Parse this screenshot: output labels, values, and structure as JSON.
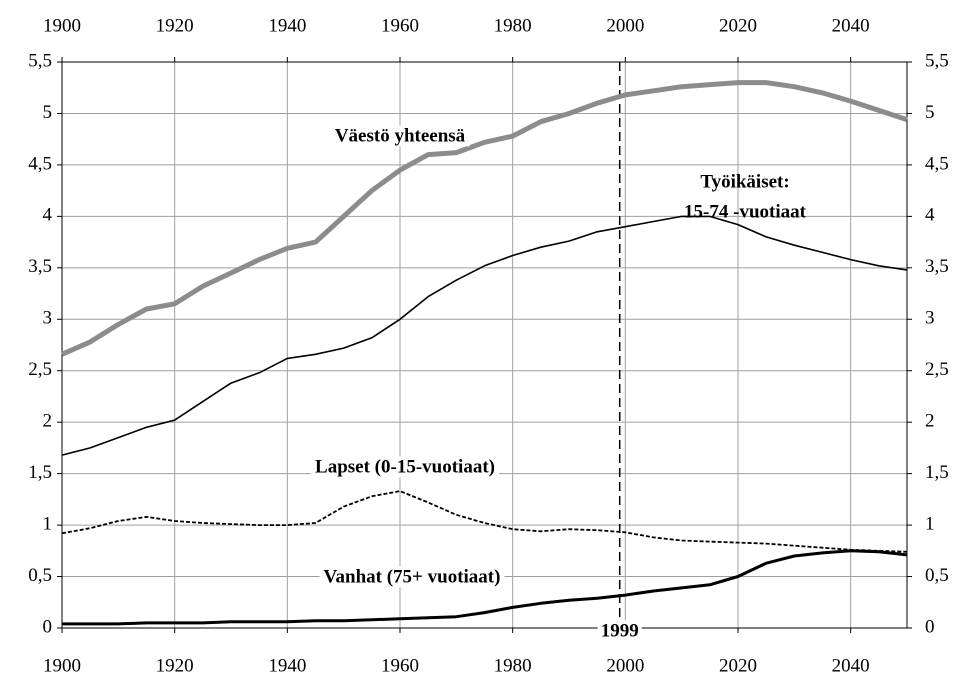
{
  "chart_data": {
    "type": "line",
    "x": [
      1900,
      1905,
      1910,
      1915,
      1920,
      1925,
      1930,
      1935,
      1940,
      1945,
      1950,
      1955,
      1960,
      1965,
      1970,
      1975,
      1980,
      1985,
      1990,
      1995,
      2000,
      2005,
      2010,
      2015,
      2020,
      2025,
      2030,
      2035,
      2040,
      2045,
      2050
    ],
    "series": [
      {
        "color": "#8c8c8c",
        "line_style": "solid",
        "values": [
          2.66,
          2.78,
          2.95,
          3.1,
          3.15,
          3.32,
          3.45,
          3.58,
          3.69,
          3.75,
          4.0,
          4.25,
          4.45,
          4.6,
          4.62,
          4.72,
          4.78,
          4.92,
          5.0,
          5.1,
          5.18,
          5.22,
          5.26,
          5.28,
          5.3,
          5.3,
          5.26,
          5.2,
          5.12,
          5.03,
          4.94
        ]
      },
      {
        "color": "#000000",
        "line_style": "solid",
        "values": [
          1.68,
          1.75,
          1.85,
          1.95,
          2.02,
          2.2,
          2.38,
          2.48,
          2.62,
          2.66,
          2.72,
          2.82,
          3.0,
          3.22,
          3.38,
          3.52,
          3.62,
          3.7,
          3.76,
          3.85,
          3.9,
          3.95,
          4.0,
          4.0,
          3.92,
          3.8,
          3.72,
          3.65,
          3.58,
          3.52,
          3.48
        ]
      },
      {
        "color": "#000000",
        "line_style": "dashed",
        "values": [
          0.92,
          0.97,
          1.04,
          1.08,
          1.04,
          1.02,
          1.01,
          1.0,
          1.0,
          1.02,
          1.18,
          1.28,
          1.33,
          1.22,
          1.1,
          1.02,
          0.96,
          0.94,
          0.96,
          0.95,
          0.93,
          0.88,
          0.85,
          0.84,
          0.83,
          0.82,
          0.8,
          0.78,
          0.76,
          0.75,
          0.74
        ]
      },
      {
        "color": "#000000",
        "line_style": "solid",
        "values": [
          0.04,
          0.04,
          0.04,
          0.05,
          0.05,
          0.05,
          0.06,
          0.06,
          0.06,
          0.07,
          0.07,
          0.08,
          0.09,
          0.1,
          0.11,
          0.15,
          0.2,
          0.24,
          0.27,
          0.29,
          0.32,
          0.36,
          0.39,
          0.42,
          0.5,
          0.63,
          0.7,
          0.73,
          0.75,
          0.74,
          0.71
        ]
      }
    ],
    "annotations": [
      "Väestö yhteensä",
      "Työikäiset:",
      "15-74 -vuotiaat",
      "Lapset (0-15-vuotiaat)",
      "Vanhat (75+ vuotiaat)"
    ],
    "vline": 1999,
    "xlim": [
      1900,
      2050
    ],
    "xticks": [
      1900,
      1920,
      1940,
      1960,
      1980,
      2000,
      2020,
      2040
    ],
    "ylim": [
      0,
      5.5
    ],
    "yticks": [
      0,
      {
        "value": 0.5,
        "label": "0,5"
      },
      1,
      {
        "value": 1.5,
        "label": "1,5"
      },
      2,
      {
        "value": 2.5,
        "label": "2,5"
      },
      3,
      {
        "value": 3.5,
        "label": "3,5"
      },
      4,
      {
        "value": 4.5,
        "label": "4,5"
      },
      5,
      {
        "value": 5.5,
        "label": "5,5"
      }
    ],
    "grid": true
  }
}
